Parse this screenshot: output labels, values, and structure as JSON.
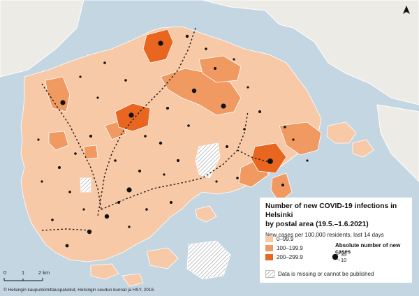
{
  "legend": {
    "title_line1": "Number of new COVID-19 infections in Helsinki",
    "title_line2": "by postal area (19.5.–1.6.2021)",
    "subtitle": "New cases per 100,000 residents, last 14 days",
    "classes": [
      {
        "label": "0–99.9",
        "color": "#f7c9a7"
      },
      {
        "label": "100–199.9",
        "color": "#f09a61"
      },
      {
        "label": "200–299.9",
        "color": "#e8661f"
      }
    ],
    "absolute_title": "Absolute number of new cases",
    "absolute_values": [
      "35",
      "10"
    ],
    "missing_label": "Data is missing or cannot be published"
  },
  "scale_bar": {
    "labels": [
      "0",
      "1",
      "2 km"
    ]
  },
  "credit": "© Helsingin kaupunkimittauspalvelut, Helsingin seudun kunnat ja HSY, 2018.",
  "colors": {
    "sea": "#c5d6e3",
    "outside_land": "#ecebe6",
    "rail": "#1a1a1a"
  },
  "icons": {
    "north_arrow": "north-arrow-icon"
  }
}
